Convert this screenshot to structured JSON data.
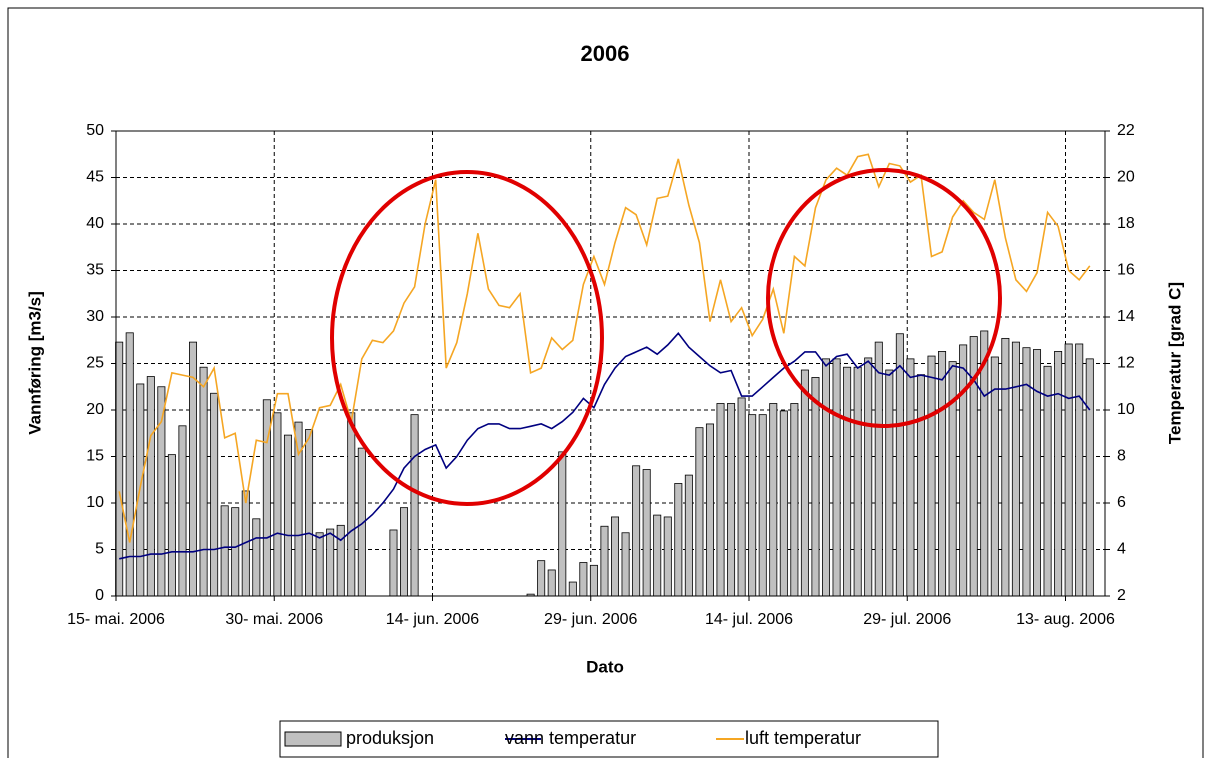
{
  "chart_data": {
    "type": "bar",
    "title": "2006",
    "x_label": "Dato",
    "y_label": "Vannføring [m3/s]",
    "y2_label": "Temperatur [grad C]",
    "categories": [
      "15- mai. 2006",
      null,
      null,
      null,
      null,
      null,
      null,
      null,
      null,
      null,
      null,
      null,
      null,
      null,
      null,
      "30- mai. 2006",
      null,
      null,
      null,
      null,
      null,
      null,
      null,
      null,
      null,
      null,
      null,
      null,
      null,
      null,
      "14- jun. 2006",
      null,
      null,
      null,
      null,
      null,
      null,
      null,
      null,
      null,
      null,
      null,
      null,
      null,
      null,
      "29- jun. 2006",
      null,
      null,
      null,
      null,
      null,
      null,
      null,
      null,
      null,
      null,
      null,
      null,
      null,
      null,
      "14- jul. 2006",
      null,
      null,
      null,
      null,
      null,
      null,
      null,
      null,
      null,
      null,
      null,
      null,
      null,
      null,
      "29- jul. 2006",
      null,
      null,
      null,
      null,
      null,
      null,
      null,
      null,
      null,
      null,
      null,
      null,
      null,
      null,
      "13- aug. 2006",
      null,
      null
    ],
    "ylim": [
      0,
      50
    ],
    "yticks": [
      0,
      5,
      10,
      15,
      20,
      25,
      30,
      35,
      40,
      45,
      50
    ],
    "y2lim": [
      2,
      22
    ],
    "y2ticks": [
      2,
      4,
      6,
      8,
      10,
      12,
      14,
      16,
      18,
      20,
      22
    ],
    "grid": true,
    "legend": "bottom",
    "series": [
      {
        "name": "produksjon",
        "type": "bar",
        "color": "#c0c0c0",
        "values": [
          27.3,
          28.3,
          22.8,
          23.6,
          22.5,
          15.2,
          18.3,
          27.3,
          24.6,
          21.8,
          9.7,
          9.5,
          11.3,
          8.3,
          21.1,
          19.7,
          17.3,
          18.7,
          17.9,
          6.8,
          7.2,
          7.6,
          19.7,
          15.9,
          0,
          0,
          7.1,
          9.5,
          19.5,
          0,
          0,
          0,
          0,
          0,
          0,
          0,
          0,
          0,
          0,
          0.2,
          3.8,
          2.8,
          15.5,
          1.5,
          3.6,
          3.3,
          7.5,
          8.5,
          6.8,
          14.0,
          13.6,
          8.7,
          8.5,
          12.1,
          13.0,
          18.1,
          18.5,
          20.7,
          20.7,
          21.3,
          19.5,
          19.5,
          20.7,
          19.9,
          20.7,
          24.3,
          23.5,
          25.5,
          25.5,
          24.6,
          24.6,
          25.6,
          27.3,
          24.3,
          28.2,
          25.5,
          23.8,
          25.8,
          26.3,
          25.2,
          27.0,
          27.9,
          28.5,
          25.7,
          27.7,
          27.3,
          26.7,
          26.5,
          24.7,
          26.3,
          27.1,
          27.1,
          25.5
        ]
      },
      {
        "name": "vann temperatur",
        "type": "line",
        "axis": "y2",
        "color": "#000080",
        "values": [
          3.6,
          3.7,
          3.7,
          3.8,
          3.8,
          3.9,
          3.9,
          3.9,
          4.0,
          4.0,
          4.1,
          4.1,
          4.3,
          4.5,
          4.5,
          4.7,
          4.6,
          4.6,
          4.7,
          4.5,
          4.7,
          4.4,
          4.8,
          5.1,
          5.5,
          6.0,
          6.6,
          7.5,
          8.0,
          8.3,
          8.5,
          7.5,
          8.0,
          8.7,
          9.2,
          9.4,
          9.4,
          9.2,
          9.2,
          9.3,
          9.4,
          9.2,
          9.5,
          9.9,
          10.5,
          10.1,
          11.1,
          11.8,
          12.3,
          12.5,
          12.7,
          12.4,
          12.8,
          13.3,
          12.7,
          12.3,
          11.9,
          11.6,
          11.7,
          10.6,
          10.6,
          11.0,
          11.4,
          11.8,
          12.1,
          12.5,
          12.5,
          11.9,
          12.3,
          12.4,
          11.8,
          12.1,
          11.6,
          11.5,
          11.9,
          11.4,
          11.5,
          11.4,
          11.3,
          11.9,
          11.8,
          11.3,
          10.6,
          10.9,
          10.9,
          11.0,
          11.1,
          10.8,
          10.6,
          10.7,
          10.5,
          10.6,
          10.0
        ]
      },
      {
        "name": "luft temperatur",
        "type": "line",
        "axis": "y2",
        "color": "#f5a623",
        "values": [
          6.5,
          4.3,
          6.7,
          8.9,
          9.5,
          11.6,
          11.5,
          11.4,
          11.0,
          11.8,
          8.8,
          9.0,
          6.0,
          8.7,
          8.6,
          10.7,
          10.7,
          8.1,
          8.8,
          10.1,
          10.2,
          11.1,
          9.5,
          12.2,
          13.0,
          12.9,
          13.4,
          14.6,
          15.3,
          18.0,
          19.9,
          11.8,
          12.9,
          15.0,
          17.6,
          15.2,
          14.5,
          14.4,
          15.0,
          11.6,
          11.8,
          13.1,
          12.6,
          13.0,
          15.4,
          16.6,
          15.4,
          17.2,
          18.7,
          18.4,
          17.1,
          19.1,
          19.2,
          20.8,
          18.8,
          17.2,
          13.8,
          15.6,
          13.8,
          14.4,
          13.2,
          13.9,
          15.2,
          13.3,
          16.6,
          16.2,
          18.7,
          19.9,
          20.4,
          20.1,
          20.9,
          21.0,
          19.6,
          20.6,
          20.5,
          19.8,
          20.1,
          16.6,
          16.8,
          18.3,
          19.0,
          18.5,
          18.2,
          19.9,
          17.4,
          15.6,
          15.1,
          15.9,
          18.5,
          17.9,
          16.0,
          15.6,
          16.2
        ]
      }
    ]
  }
}
